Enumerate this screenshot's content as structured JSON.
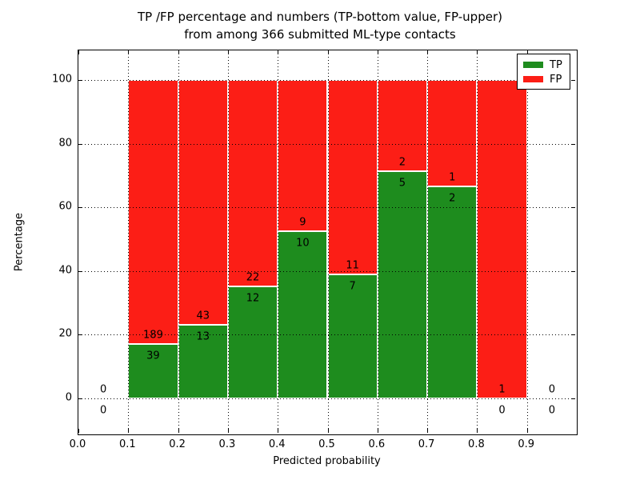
{
  "colors": {
    "tp_green": "#1e8c1e",
    "fp_red": "#fc1e16",
    "grid": "#000000",
    "background": "#ffffff",
    "text": "#000000"
  },
  "figure": {
    "title_line1": "TP /FP percentage and numbers (TP-bottom value, FP-upper)",
    "title_line2": "from among 366 submitted ML-type contacts",
    "xlabel": "Predicted probability",
    "ylabel": "Percentage"
  },
  "chart_data": {
    "type": "bar",
    "variant": "stacked-percentage",
    "title": "TP /FP percentage and numbers (TP-bottom value, FP-upper) from among 366 submitted ML-type contacts",
    "xlabel": "Predicted probability",
    "ylabel": "Percentage",
    "xlim": [
      0.0,
      1.0
    ],
    "ylim": [
      -11.5,
      109.5
    ],
    "x_tick_labels": [
      "0.0",
      "0.1",
      "0.2",
      "0.3",
      "0.4",
      "0.5",
      "0.6",
      "0.7",
      "0.8",
      "0.9"
    ],
    "y_tick_values": [
      0,
      20,
      40,
      60,
      80,
      100
    ],
    "y_tick_labels": [
      "0",
      "20",
      "40",
      "60",
      "80",
      "100"
    ],
    "grid": {
      "style": "dotted",
      "color": "#000000",
      "drawn_over_bars": true
    },
    "legend": {
      "position": "upper-right",
      "entries": [
        {
          "label": "TP",
          "color": "#1e8c1e"
        },
        {
          "label": "FP",
          "color": "#fc1e16"
        }
      ]
    },
    "total_contacts": 366,
    "bins": [
      {
        "range": [
          0.0,
          0.1
        ],
        "tp": 0,
        "fp": 0,
        "tp_pct": null,
        "fp_pct": null
      },
      {
        "range": [
          0.1,
          0.2
        ],
        "tp": 39,
        "fp": 189,
        "tp_pct": 17.1,
        "fp_pct": 82.9
      },
      {
        "range": [
          0.2,
          0.3
        ],
        "tp": 13,
        "fp": 43,
        "tp_pct": 23.2,
        "fp_pct": 76.8
      },
      {
        "range": [
          0.3,
          0.4
        ],
        "tp": 12,
        "fp": 22,
        "tp_pct": 35.3,
        "fp_pct": 64.7
      },
      {
        "range": [
          0.4,
          0.5
        ],
        "tp": 10,
        "fp": 9,
        "tp_pct": 52.6,
        "fp_pct": 47.4
      },
      {
        "range": [
          0.5,
          0.6
        ],
        "tp": 7,
        "fp": 11,
        "tp_pct": 38.9,
        "fp_pct": 61.1
      },
      {
        "range": [
          0.6,
          0.7
        ],
        "tp": 5,
        "fp": 2,
        "tp_pct": 71.4,
        "fp_pct": 28.6
      },
      {
        "range": [
          0.7,
          0.8
        ],
        "tp": 2,
        "fp": 1,
        "tp_pct": 66.7,
        "fp_pct": 33.3
      },
      {
        "range": [
          0.8,
          0.9
        ],
        "tp": 0,
        "fp": 1,
        "tp_pct": 0,
        "fp_pct": 100
      },
      {
        "range": [
          0.9,
          1.0
        ],
        "tp": 0,
        "fp": 0,
        "tp_pct": null,
        "fp_pct": null
      }
    ]
  }
}
